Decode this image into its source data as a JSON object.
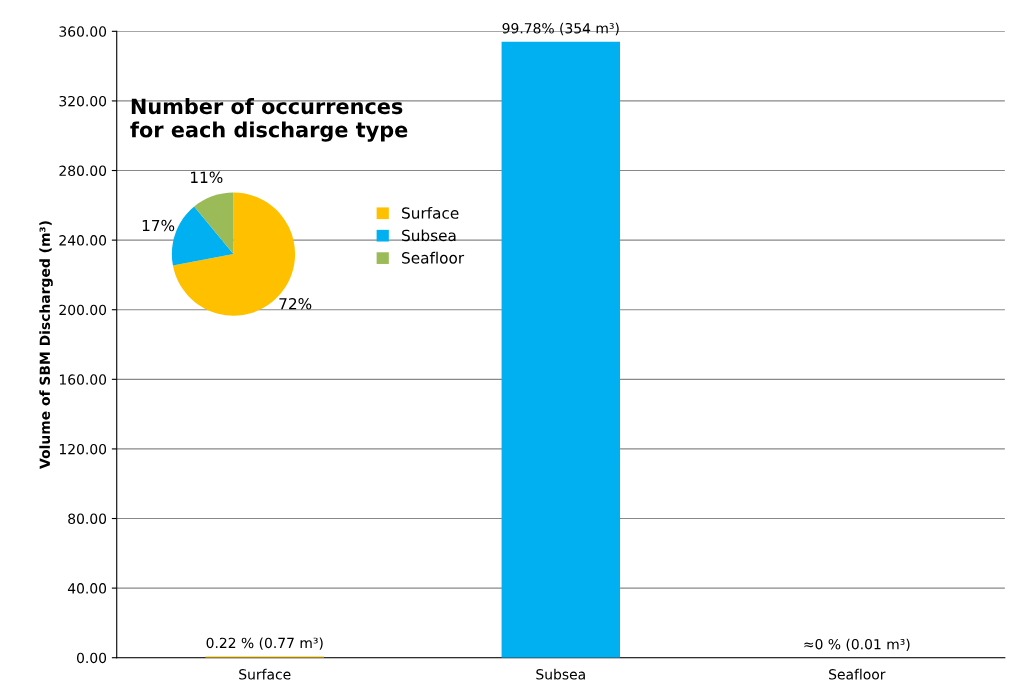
{
  "chart_data": [
    {
      "type": "bar",
      "ylabel": "Volume of SBM Discharged (m³)",
      "categories": [
        "Surface",
        "Subsea",
        "Seafloor"
      ],
      "values": [
        0.77,
        354,
        0.01
      ],
      "colors": [
        "#f2c200",
        "#00b0f0",
        "#27a86b"
      ],
      "value_labels": [
        "0.22 % (0.77 m³)",
        "99.78% (354 m³)",
        "≈0 % (0.01 m³)"
      ],
      "ylim": [
        0,
        360
      ],
      "yticks": [
        {
          "value": 0,
          "label": "0.00"
        },
        {
          "value": 40,
          "label": "40.00"
        },
        {
          "value": 80,
          "label": "80.00"
        },
        {
          "value": 120,
          "label": "120.00"
        },
        {
          "value": 160,
          "label": "160.00"
        },
        {
          "value": 200,
          "label": "200.00"
        },
        {
          "value": 240,
          "label": "240.00"
        },
        {
          "value": 280,
          "label": "280.00"
        },
        {
          "value": 320,
          "label": "320.00"
        },
        {
          "value": 360,
          "label": "360.00"
        }
      ],
      "grid": "y"
    },
    {
      "type": "pie",
      "title": "Number of occurrences\nfor each discharge type",
      "categories": [
        "Surface",
        "Subsea",
        "Seafloor"
      ],
      "values": [
        72,
        17,
        11
      ],
      "colors": [
        "#ffc000",
        "#00b0f0",
        "#9bbb59"
      ],
      "value_labels": [
        "72%",
        "17%",
        "11%"
      ],
      "legend": "right"
    }
  ]
}
